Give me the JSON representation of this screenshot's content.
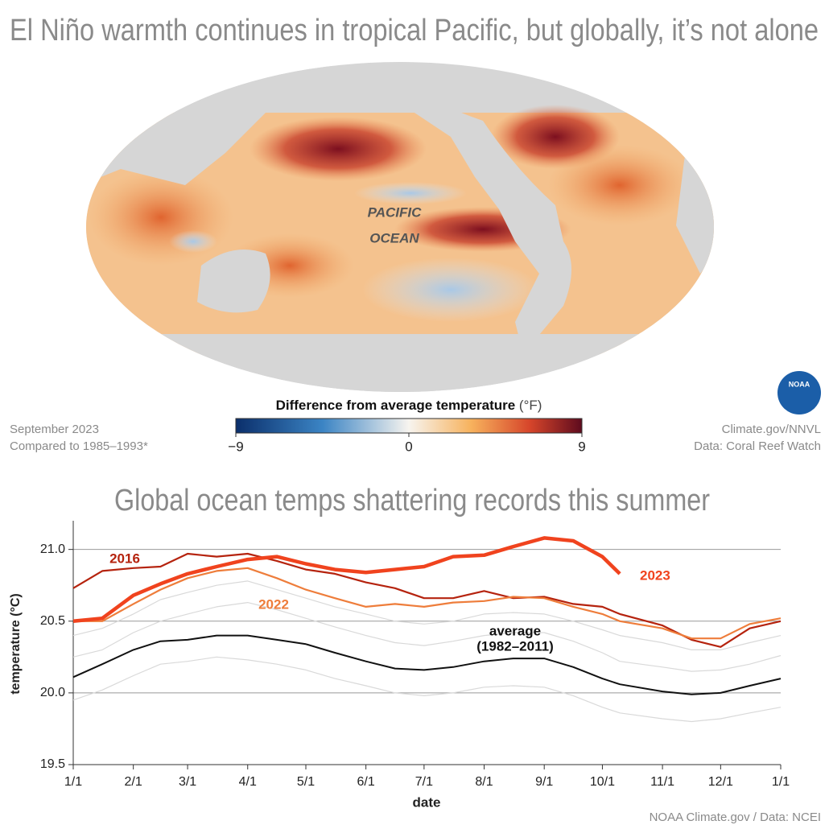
{
  "header": {
    "title": "El Niño warmth continues in tropical Pacific, but globally, it’s not alone"
  },
  "map": {
    "label_lines": [
      "PACIFIC",
      "OCEAN"
    ],
    "colorbar": {
      "title": "Difference from average temperature",
      "unit": "(°F)",
      "ticks": [
        {
          "value": -9,
          "label": "−9"
        },
        0,
        9
      ]
    },
    "notes_left": [
      "September 2023",
      "Compared to 1985–1993*"
    ],
    "notes_right": [
      "Climate.gov/NNVL",
      "Data: Coral Reef Watch"
    ],
    "logo": "NOAA"
  },
  "chart_data": {
    "type": "line",
    "title": "Global ocean temps shattering records this summer",
    "y_label": "temperature (°C)",
    "x_label": "date",
    "credit": "NOAA Climate.gov / Data: NCEI",
    "x": [
      0,
      15,
      31,
      45,
      59,
      74,
      90,
      105,
      120,
      135,
      151,
      166,
      181,
      196,
      212,
      227,
      243,
      258,
      273,
      282,
      304,
      319,
      334,
      349,
      365
    ],
    "xlim": [
      0,
      365
    ],
    "xticks": [
      {
        "value": 0,
        "label": "1/1"
      },
      {
        "value": 31,
        "label": "2/1"
      },
      {
        "value": 59,
        "label": "3/1"
      },
      {
        "value": 90,
        "label": "4/1"
      },
      {
        "value": 120,
        "label": "5/1"
      },
      {
        "value": 151,
        "label": "6/1"
      },
      {
        "value": 181,
        "label": "7/1"
      },
      {
        "value": 212,
        "label": "8/1"
      },
      {
        "value": 243,
        "label": "9/1"
      },
      {
        "value": 273,
        "label": "10/1"
      },
      {
        "value": 304,
        "label": "11/1"
      },
      {
        "value": 334,
        "label": "12/1"
      },
      {
        "value": 365,
        "label": "1/1"
      }
    ],
    "ylim": [
      19.5,
      21.2
    ],
    "yticks": [
      19.5,
      {
        "value": 20,
        "label": "20.0"
      },
      20.5,
      {
        "value": 21,
        "label": "21.0"
      }
    ],
    "grid": true,
    "series": [
      {
        "color": "#d9d9d9",
        "values": [
          20.25,
          20.3,
          20.42,
          20.5,
          20.55,
          20.6,
          20.63,
          20.58,
          20.52,
          20.46,
          20.4,
          20.35,
          20.33,
          20.36,
          20.4,
          20.42,
          20.42,
          20.36,
          20.28,
          20.22,
          20.18,
          20.15,
          20.16,
          20.2,
          20.26
        ]
      },
      {
        "color": "#d9d9d9",
        "values": [
          19.95,
          20.02,
          20.12,
          20.2,
          20.22,
          20.25,
          20.23,
          20.2,
          20.16,
          20.1,
          20.05,
          20.0,
          19.98,
          20.0,
          20.04,
          20.05,
          20.04,
          19.98,
          19.9,
          19.86,
          19.82,
          19.8,
          19.82,
          19.86,
          19.9
        ]
      },
      {
        "color": "#d9d9d9",
        "values": [
          20.4,
          20.45,
          20.55,
          20.65,
          20.7,
          20.75,
          20.78,
          20.72,
          20.66,
          20.6,
          20.55,
          20.5,
          20.48,
          20.5,
          20.55,
          20.56,
          20.55,
          20.5,
          20.44,
          20.4,
          20.35,
          20.3,
          20.3,
          20.35,
          20.4
        ]
      },
      {
        "name": "2016",
        "color": "#b5230e",
        "values": [
          20.73,
          20.85,
          20.87,
          20.88,
          20.97,
          20.95,
          20.97,
          20.92,
          20.86,
          20.83,
          20.77,
          20.73,
          20.66,
          20.66,
          20.71,
          20.66,
          20.67,
          20.62,
          20.6,
          20.55,
          20.47,
          20.37,
          20.32,
          20.45,
          20.5
        ]
      },
      {
        "name": "2022",
        "color": "#ee7d3b",
        "values": [
          20.5,
          20.5,
          20.62,
          20.72,
          20.8,
          20.85,
          20.87,
          20.8,
          20.72,
          20.66,
          20.6,
          20.62,
          20.6,
          20.63,
          20.64,
          20.67,
          20.66,
          20.6,
          20.55,
          20.5,
          20.45,
          20.38,
          20.38,
          20.48,
          20.52
        ]
      },
      {
        "name": "2023",
        "color": "#f0431e",
        "values": [
          20.5,
          20.52,
          20.68,
          20.76,
          20.83,
          20.88,
          20.93,
          20.95,
          20.9,
          20.86,
          20.84,
          20.86,
          20.88,
          20.95,
          20.96,
          21.02,
          21.08,
          21.06,
          20.95,
          20.83,
          null,
          null,
          null,
          null,
          null
        ]
      },
      {
        "name": "average",
        "note": "(1982–2011)",
        "color": "#111111",
        "values": [
          20.11,
          20.2,
          20.3,
          20.36,
          20.37,
          20.4,
          20.4,
          20.37,
          20.34,
          20.28,
          20.22,
          20.17,
          20.16,
          20.18,
          20.22,
          20.24,
          20.24,
          20.18,
          20.1,
          20.06,
          20.01,
          19.99,
          20.0,
          20.05,
          20.1
        ]
      }
    ]
  }
}
